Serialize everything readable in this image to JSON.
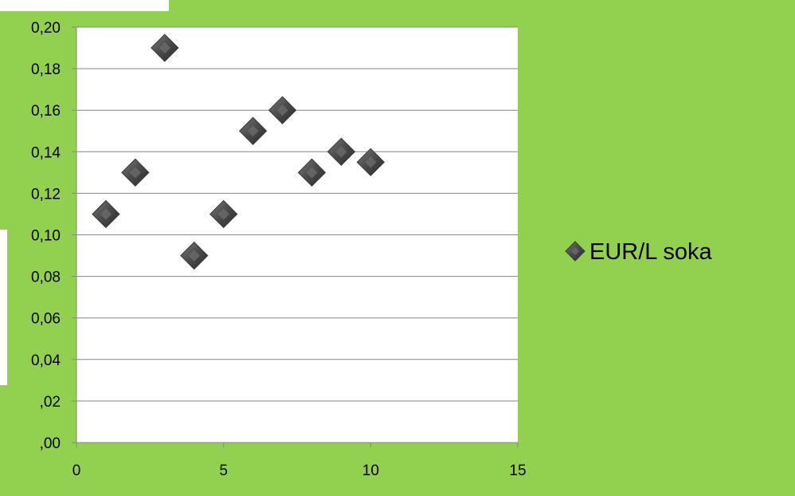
{
  "chart_data": {
    "type": "scatter",
    "title": "",
    "xlabel": "",
    "ylabel": "",
    "xlim": [
      0,
      15
    ],
    "ylim": [
      0,
      0.2
    ],
    "x_ticks": [
      0,
      5,
      10,
      15
    ],
    "y_ticks": [
      0,
      0.02,
      0.04,
      0.06,
      0.08,
      0.1,
      0.12,
      0.14,
      0.16,
      0.18,
      0.2
    ],
    "x_tick_labels": [
      "0",
      "5",
      "10",
      "15"
    ],
    "y_tick_labels": [
      ",00",
      ",02",
      "0,04",
      "0,06",
      "0,08",
      "0,10",
      "0,12",
      "0,14",
      "0,16",
      "0,18",
      "0,20"
    ],
    "grid": "horizontal",
    "legend_position": "right",
    "series": [
      {
        "name": "EUR/L soka",
        "marker": "diamond",
        "color": "#4d4d4d",
        "points": [
          {
            "x": 1,
            "y": 0.11
          },
          {
            "x": 2,
            "y": 0.13
          },
          {
            "x": 3,
            "y": 0.19
          },
          {
            "x": 4,
            "y": 0.09
          },
          {
            "x": 5,
            "y": 0.11
          },
          {
            "x": 6,
            "y": 0.15
          },
          {
            "x": 7,
            "y": 0.16
          },
          {
            "x": 8,
            "y": 0.13
          },
          {
            "x": 9,
            "y": 0.14
          },
          {
            "x": 10,
            "y": 0.135
          }
        ]
      }
    ]
  },
  "colors": {
    "background": "#92d050",
    "plot_area": "#ffffff",
    "gridline": "#868686",
    "marker": "#4d4d4d"
  }
}
